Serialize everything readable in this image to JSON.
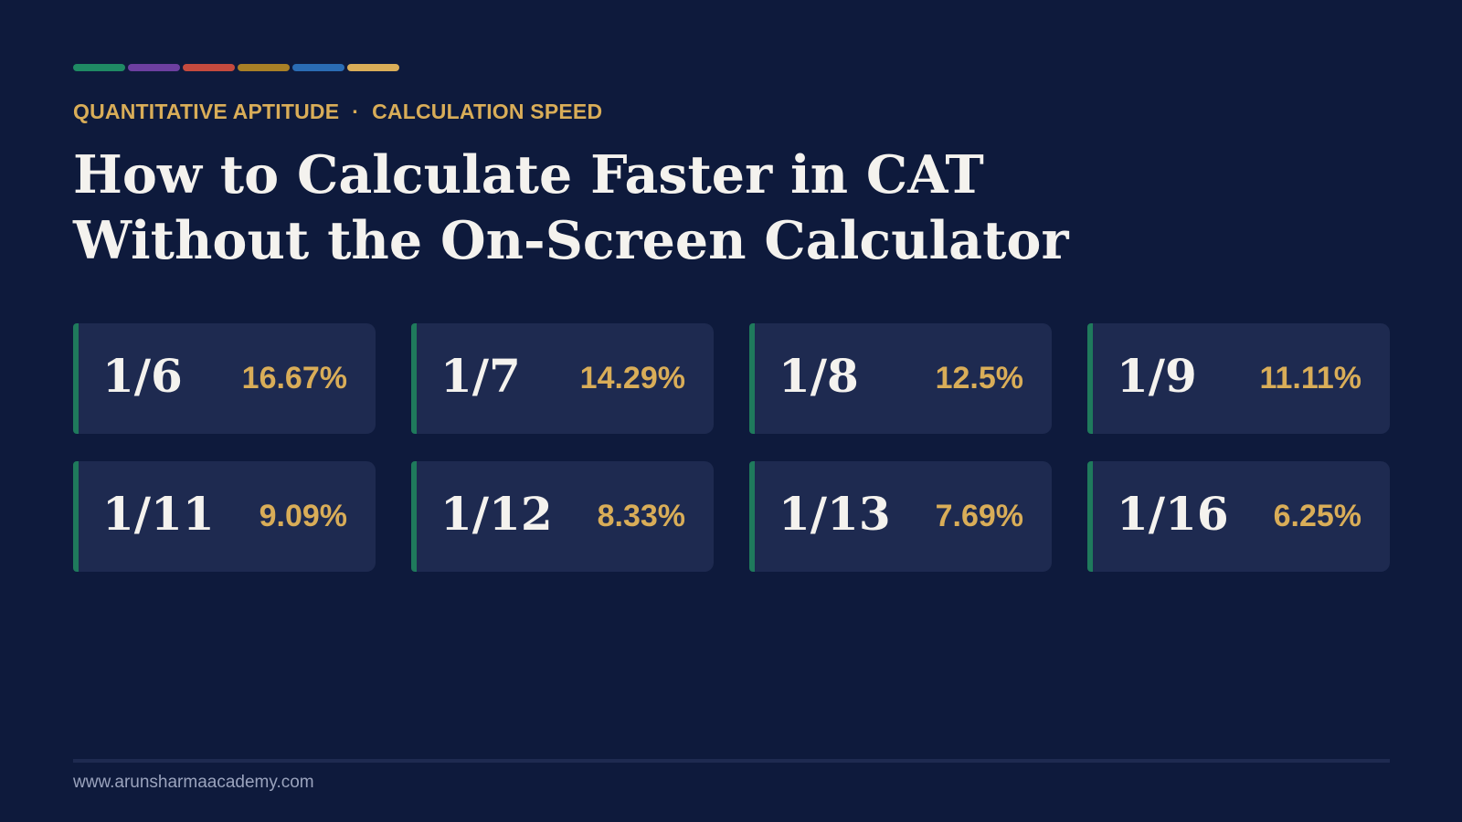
{
  "accent_colors": [
    "#1f8a64",
    "#6d3fa0",
    "#c44a3e",
    "#a88026",
    "#2a6cb4",
    "#d9ad58"
  ],
  "header": {
    "subject": "QUANTITATIVE APTITUDE",
    "separator": "·",
    "topic": "CALCULATION SPEED",
    "title_line1": "How to Calculate Faster in CAT",
    "title_line2": "Without the On-Screen Calculator"
  },
  "cards": [
    {
      "fraction": "1/6",
      "percent": "16.67%"
    },
    {
      "fraction": "1/7",
      "percent": "14.29%"
    },
    {
      "fraction": "1/8",
      "percent": "12.5%"
    },
    {
      "fraction": "1/9",
      "percent": "11.11%"
    },
    {
      "fraction": "1/11",
      "percent": "9.09%"
    },
    {
      "fraction": "1/12",
      "percent": "8.33%"
    },
    {
      "fraction": "1/13",
      "percent": "7.69%"
    },
    {
      "fraction": "1/16",
      "percent": "6.25%"
    }
  ],
  "footer": {
    "url": "www.arunsharmaacademy.com"
  },
  "colors": {
    "background": "#0e1a3c",
    "card_background": "#1e2a50",
    "card_accent": "#1f7a5c",
    "gold": "#d9ad58",
    "title_text": "#f4f2ee"
  }
}
